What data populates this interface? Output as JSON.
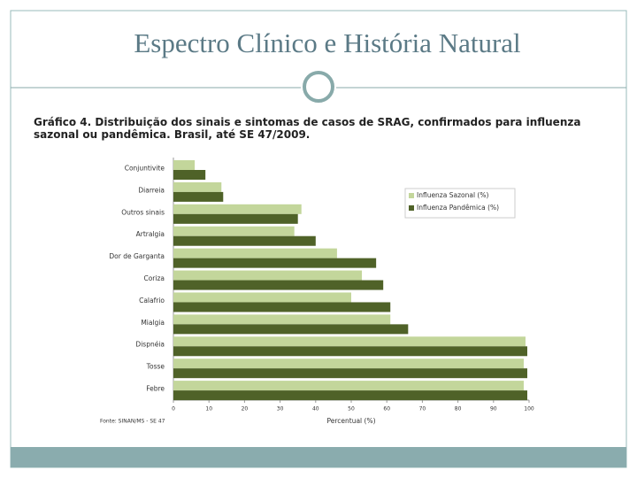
{
  "slide_title": "Espectro Clínico e História Natural",
  "chart_data": {
    "type": "barh",
    "title": "Gráfico 4. Distribuição dos sinais e sintomas de casos de SRAG, confirmados para influenza sazonal ou pandêmica. Brasil, até SE 47/2009.",
    "categories": [
      "Conjuntivite",
      "Diarreia",
      "Outros sinais",
      "Artralgia",
      "Dor de Garganta",
      "Coriza",
      "Calafrio",
      "Mialgia",
      "Dispnéia",
      "Tosse",
      "Febre"
    ],
    "series": [
      {
        "name": "Influenza Sazonal (%)",
        "color": "#c3d69b",
        "values": [
          6,
          13.5,
          36,
          34,
          46,
          53,
          50,
          61,
          99,
          98.5,
          98.5
        ]
      },
      {
        "name": "Influenza Pandêmica (%)",
        "color": "#4f6228",
        "values": [
          9,
          14,
          35,
          40,
          57,
          59,
          61,
          66,
          99.5,
          99.5,
          99.5
        ]
      }
    ],
    "xlabel": "Percentual (%)",
    "source": "Fonte: SINAN/MS - SE 47",
    "xlim": [
      0,
      100
    ],
    "xticks": [
      0,
      10,
      20,
      30,
      40,
      50,
      60,
      70,
      80,
      90,
      100
    ],
    "legend": "upper-right"
  }
}
